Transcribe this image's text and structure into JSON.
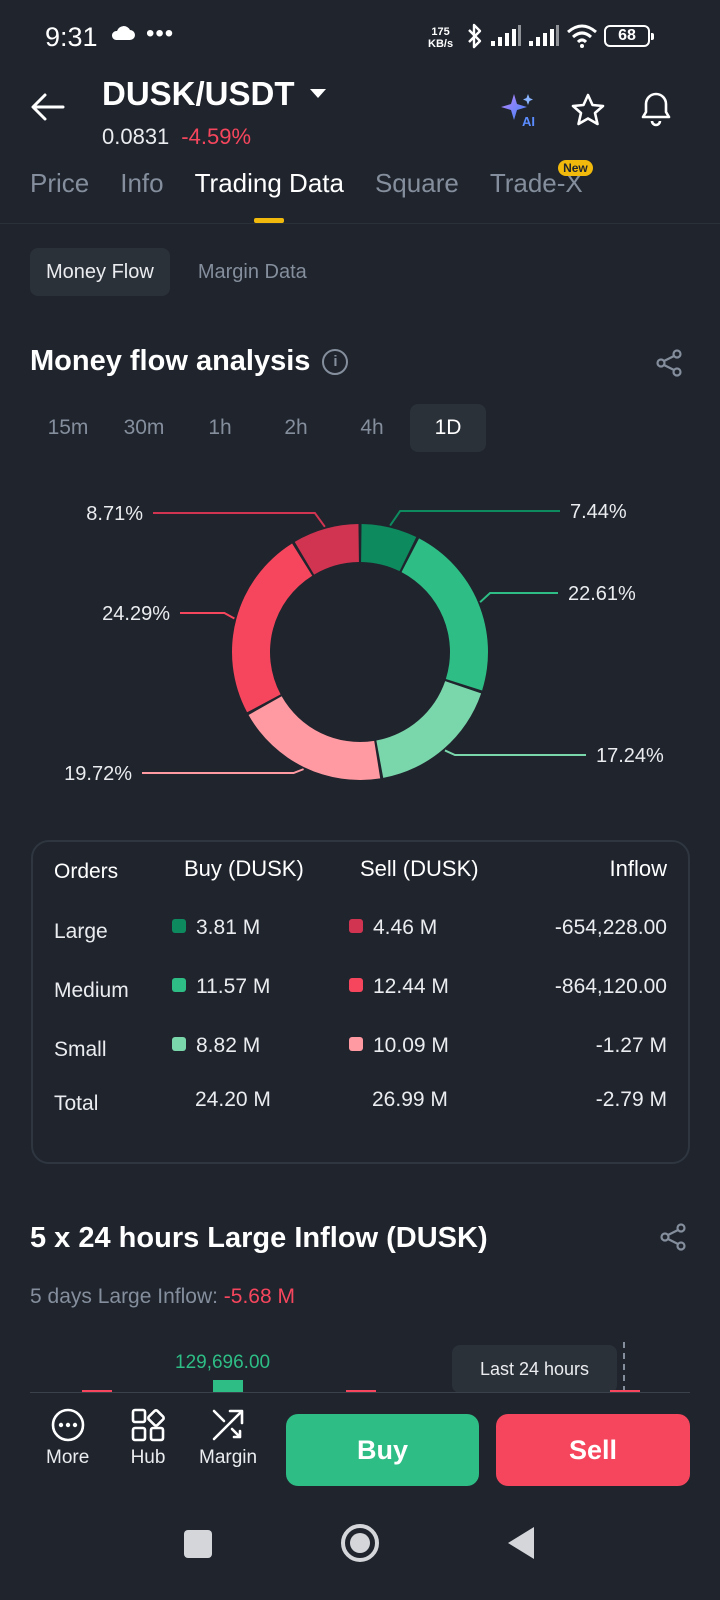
{
  "status": {
    "time": "9:31",
    "dots": "•••",
    "speed_value": "175",
    "speed_unit": "KB/s",
    "battery": "68"
  },
  "header": {
    "pair": "DUSK/USDT",
    "price": "0.0831",
    "change": "-4.59%",
    "ai_label": "AI"
  },
  "tabs": [
    {
      "label": "Price"
    },
    {
      "label": "Info"
    },
    {
      "label": "Trading Data"
    },
    {
      "label": "Square"
    },
    {
      "label": "Trade-X",
      "badge": "New"
    }
  ],
  "subtabs": [
    {
      "label": "Money Flow"
    },
    {
      "label": "Margin Data"
    }
  ],
  "money_flow": {
    "title": "Money flow analysis",
    "info": "i",
    "intervals": [
      "15m",
      "30m",
      "1h",
      "2h",
      "4h",
      "1D"
    ],
    "selected_interval": "1D"
  },
  "chart_data": {
    "type": "pie",
    "categories": [
      "Large Buy",
      "Medium Buy",
      "Small Buy",
      "Small Sell",
      "Medium Sell",
      "Large Sell"
    ],
    "values": [
      7.44,
      22.61,
      17.24,
      19.72,
      24.29,
      8.71
    ],
    "labels": [
      "7.44%",
      "22.61%",
      "17.24%",
      "19.72%",
      "24.29%",
      "8.71%"
    ],
    "colors": [
      "#0e8a5f",
      "#2ebd85",
      "#7ad6ab",
      "#ff9aa2",
      "#f6465d",
      "#d13451"
    ]
  },
  "orders_table": {
    "headers": [
      "Orders",
      "Buy (DUSK)",
      "Sell (DUSK)",
      "Inflow"
    ],
    "rows": [
      {
        "label": "Large",
        "buy": "3.81 M",
        "sell": "4.46 M",
        "inflow": "-654,228.00",
        "buy_color": "#0e8a5f",
        "sell_color": "#d13451"
      },
      {
        "label": "Medium",
        "buy": "11.57 M",
        "sell": "12.44 M",
        "inflow": "-864,120.00",
        "buy_color": "#2ebd85",
        "sell_color": "#f6465d"
      },
      {
        "label": "Small",
        "buy": "8.82 M",
        "sell": "10.09 M",
        "inflow": "-1.27 M",
        "buy_color": "#7ad6ab",
        "sell_color": "#ff9aa2"
      },
      {
        "label": "Total",
        "buy": "24.20 M",
        "sell": "26.99 M",
        "inflow": "-2.79 M"
      }
    ]
  },
  "large_inflow": {
    "title": "5 x 24 hours Large Inflow (DUSK)",
    "sub_label": "5 days Large Inflow:",
    "sub_value": "-5.68 M",
    "bar_value": "129,696.00",
    "tooltip": "Last 24 hours"
  },
  "bottom_nav": {
    "more": "More",
    "hub": "Hub",
    "margin": "Margin",
    "buy": "Buy",
    "sell": "Sell"
  }
}
